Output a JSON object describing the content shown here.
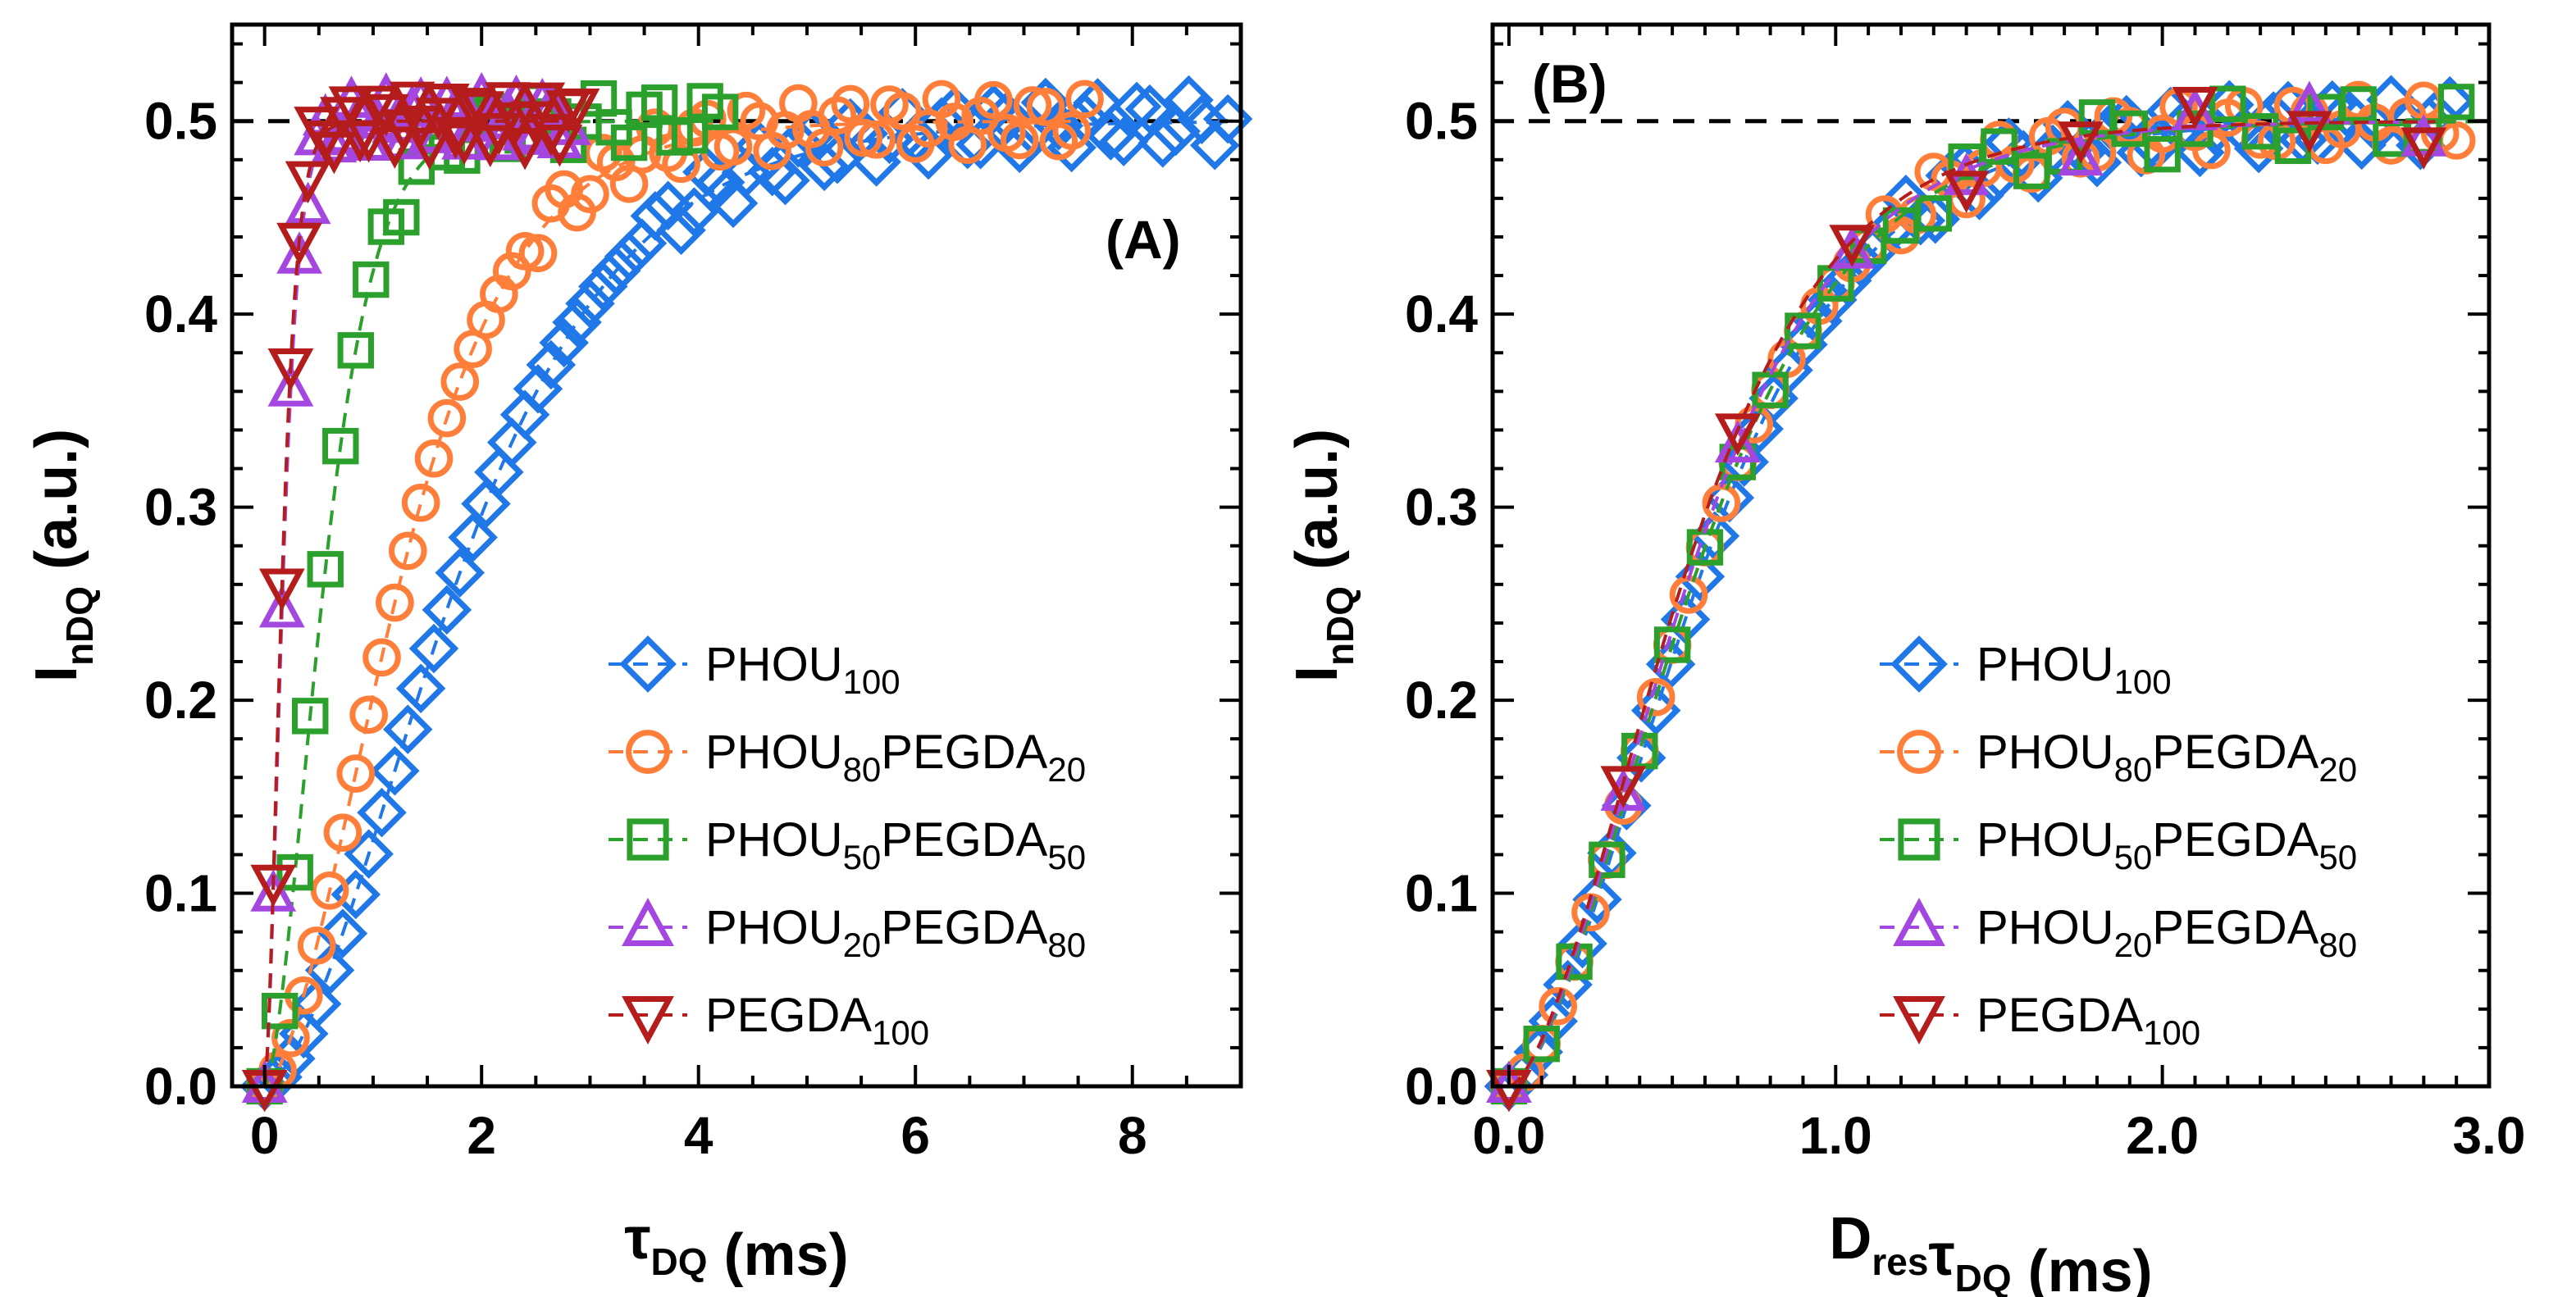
{
  "chart_data": [
    {
      "panel": "(A)",
      "type": "scatter",
      "xlabel": "τ_DQ (ms)",
      "ylabel": "I_nDQ (a.u.)",
      "xlim": [
        -0.3,
        9.0
      ],
      "ylim": [
        0.0,
        0.55
      ],
      "xticks": [
        "0",
        "2",
        "4",
        "6",
        "8"
      ],
      "yticks": [
        "0.0",
        "0.1",
        "0.2",
        "0.3",
        "0.4",
        "0.5"
      ],
      "reference_line": 0.5,
      "legend_position": "bottom-right",
      "series": [
        {
          "name": "PHOU_100",
          "label_main": "PHOU",
          "label_sub1": "100",
          "label_mid": "",
          "label_sub2": "",
          "marker": "diamond",
          "color": "#1f77e8",
          "x_max": 8.9,
          "scale": 2.2,
          "step": 0.12
        },
        {
          "name": "PHOU_80PEGDA_20",
          "label_main": "PHOU",
          "label_sub1": "80",
          "label_mid": "PEGDA",
          "label_sub2": "20",
          "marker": "circle",
          "color": "#ff7f3a",
          "x_max": 7.6,
          "scale": 1.55,
          "step": 0.12
        },
        {
          "name": "PHOU_50PEGDA_50",
          "label_main": "PHOU",
          "label_sub1": "50",
          "label_mid": "PEGDA",
          "label_sub2": "50",
          "marker": "square",
          "color": "#2ca02c",
          "x_max": 4.2,
          "scale": 0.68,
          "step": 0.14
        },
        {
          "name": "PHOU_20PEGDA_80",
          "label_main": "PHOU",
          "label_sub1": "20",
          "label_mid": "PEGDA",
          "label_sub2": "80",
          "marker": "triangle-up",
          "color": "#a347e0",
          "x_max": 2.8,
          "scale": 0.21,
          "step": 0.08
        },
        {
          "name": "PEGDA_100",
          "label_main": "PEGDA",
          "label_sub1": "100",
          "label_mid": "",
          "label_sub2": "",
          "marker": "triangle-down",
          "color": "#b51d1d",
          "x_max": 2.9,
          "scale": 0.2,
          "step": 0.08
        }
      ]
    },
    {
      "panel": "(B)",
      "type": "scatter",
      "xlabel": "D_res τ_DQ (ms)",
      "ylabel": "I_nDQ (a.u.)",
      "xlim": [
        -0.05,
        3.0
      ],
      "ylim": [
        0.0,
        0.55
      ],
      "xticks": [
        "0.0",
        "1.0",
        "2.0",
        "3.0"
      ],
      "yticks": [
        "0.0",
        "0.1",
        "0.2",
        "0.3",
        "0.4",
        "0.5"
      ],
      "reference_line": 0.5,
      "legend_position": "bottom-right",
      "series": [
        {
          "name": "PHOU_100",
          "label_main": "PHOU",
          "label_sub1": "100",
          "label_mid": "",
          "label_sub2": "",
          "marker": "diamond",
          "color": "#1f77e8",
          "x_max": 2.9,
          "scale": 0.72,
          "step": 0.045
        },
        {
          "name": "PHOU_80PEGDA_20",
          "label_main": "PHOU",
          "label_sub1": "80",
          "label_mid": "PEGDA",
          "label_sub2": "20",
          "marker": "circle",
          "color": "#ff7f3a",
          "x_max": 2.9,
          "scale": 0.7,
          "step": 0.05
        },
        {
          "name": "PHOU_50PEGDA_50",
          "label_main": "PHOU",
          "label_sub1": "50",
          "label_mid": "PEGDA",
          "label_sub2": "50",
          "marker": "square",
          "color": "#2ca02c",
          "x_max": 2.95,
          "scale": 0.7,
          "step": 0.1
        },
        {
          "name": "PHOU_20PEGDA_80",
          "label_main": "PHOU",
          "label_sub1": "20",
          "label_mid": "PEGDA",
          "label_sub2": "80",
          "marker": "triangle-up",
          "color": "#a347e0",
          "x_max": 2.85,
          "scale": 0.68,
          "step": 0.35
        },
        {
          "name": "PEGDA_100",
          "label_main": "PEGDA",
          "label_sub1": "100",
          "label_mid": "",
          "label_sub2": "",
          "marker": "triangle-down",
          "color": "#b51d1d",
          "x_max": 2.85,
          "scale": 0.66,
          "step": 0.35
        }
      ]
    }
  ]
}
